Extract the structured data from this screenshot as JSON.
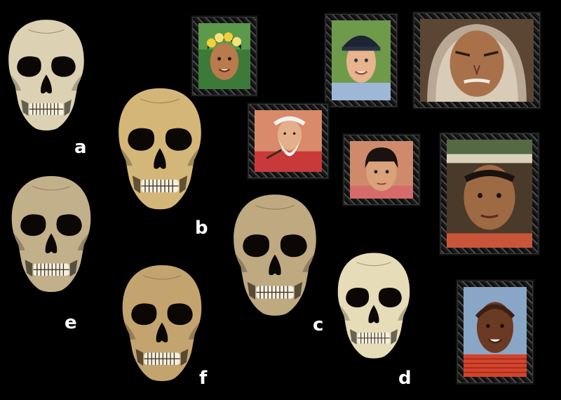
{
  "skulls": [
    {
      "id": "a",
      "label": "a"
    },
    {
      "id": "b",
      "label": "b"
    },
    {
      "id": "c",
      "label": "c"
    },
    {
      "id": "d",
      "label": "d"
    },
    {
      "id": "e",
      "label": "e"
    },
    {
      "id": "f",
      "label": "f"
    }
  ],
  "portraits": [
    {
      "id": "child-flower-crown",
      "icon": "portrait-girl-flower-crown-icon"
    },
    {
      "id": "boy-cap",
      "icon": "portrait-boy-cap-icon"
    },
    {
      "id": "man-fur-hood",
      "icon": "portrait-man-fur-hood-icon"
    },
    {
      "id": "elder-white-beard",
      "icon": "portrait-elder-beard-icon"
    },
    {
      "id": "girl-bangs",
      "icon": "portrait-girl-bangs-icon"
    },
    {
      "id": "man-green-hat",
      "icon": "portrait-man-hat-icon"
    },
    {
      "id": "child-red-collar",
      "icon": "portrait-child-red-collar-icon"
    }
  ],
  "colors": {
    "background": "#000000",
    "label_text": "#ffffff"
  }
}
